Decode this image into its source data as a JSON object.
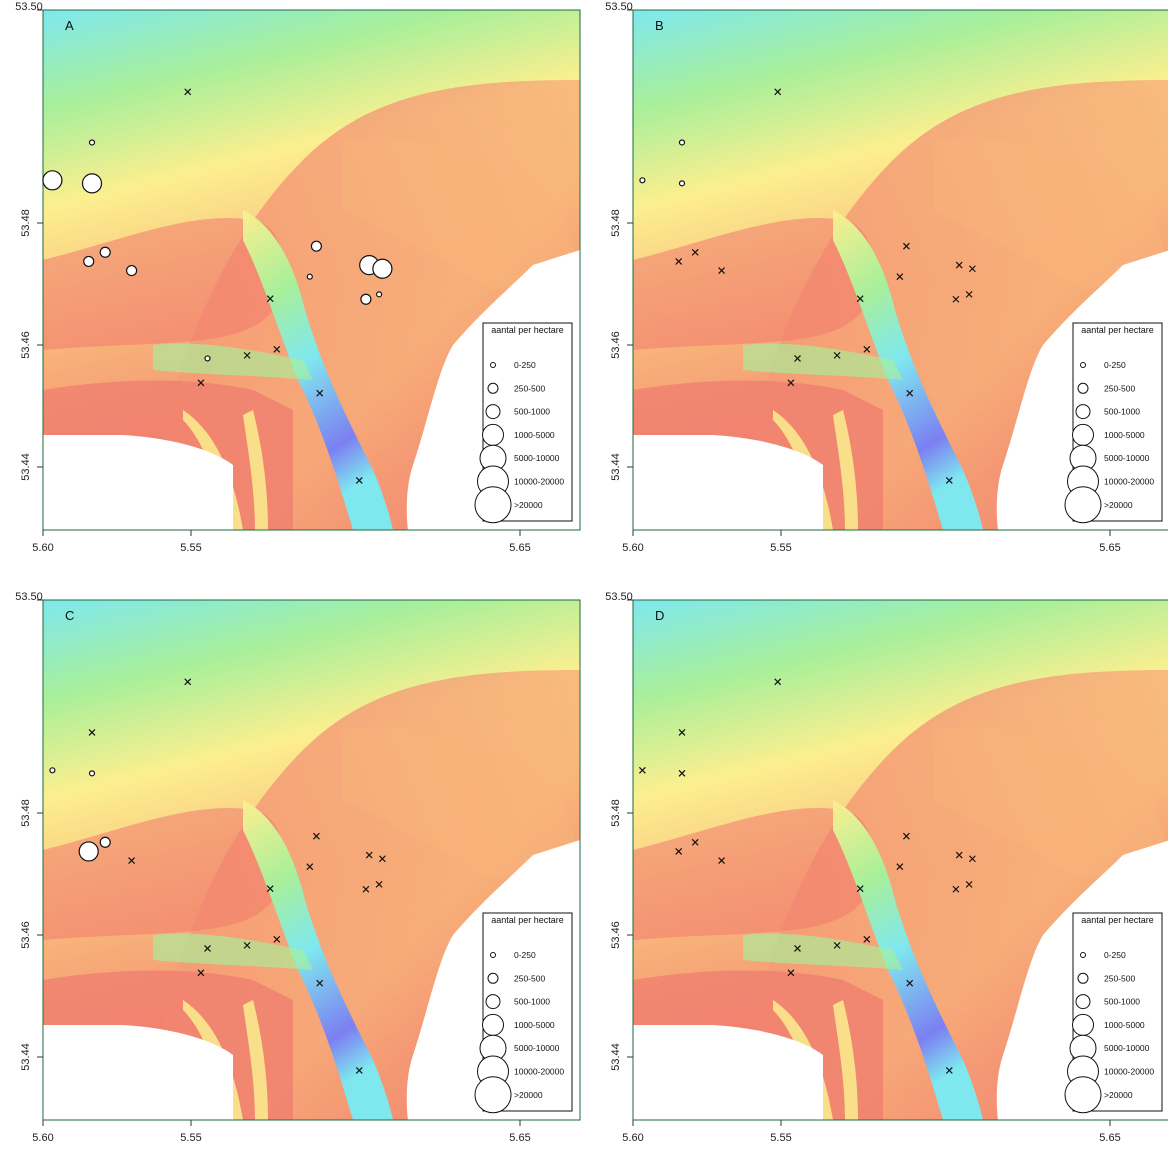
{
  "colors": {
    "deep_blue": "#7c7ff2",
    "cyan": "#7fe8ef",
    "green": "#a8ef9a",
    "yellow": "#fcef8f",
    "orange": "#f8b37a",
    "red": "#f07a6e",
    "land": "#ffffff",
    "frame": "#1e6b3a"
  },
  "x_tick_labels": [
    "5.55",
    "5.60",
    "5.65"
  ],
  "y_tick_labels": [
    "53.44",
    "53.46",
    "53.48",
    "53.50"
  ],
  "legend": {
    "title": "aantal per hectare",
    "classes": [
      "0-250",
      "250-500",
      "500-1000",
      "1000-5000",
      "5000-10000",
      "10000-20000",
      ">20000"
    ]
  },
  "chart_data": [
    {
      "type": "scatter",
      "panel": "A",
      "xlim": [
        5.505,
        5.67
      ],
      "ylim": [
        53.43,
        53.512
      ],
      "grid": false,
      "legend_position": "bottom-right",
      "symbols": "circle radius = density class; x = zero",
      "stations": [
        {
          "lon": 5.508,
          "lat": 53.487,
          "class": 2
        },
        {
          "lon": 5.52,
          "lat": 53.4865,
          "class": 2
        },
        {
          "lon": 5.52,
          "lat": 53.4932,
          "class": 0
        },
        {
          "lon": 5.519,
          "lat": 53.4737,
          "class": 1
        },
        {
          "lon": 5.524,
          "lat": 53.4752,
          "class": 1
        },
        {
          "lon": 5.532,
          "lat": 53.4722,
          "class": 1
        },
        {
          "lon": 5.549,
          "lat": 53.5015,
          "class": -1
        },
        {
          "lon": 5.588,
          "lat": 53.4762,
          "class": 1
        },
        {
          "lon": 5.586,
          "lat": 53.4712,
          "class": 0
        },
        {
          "lon": 5.574,
          "lat": 53.4676,
          "class": -1
        },
        {
          "lon": 5.555,
          "lat": 53.4578,
          "class": 0
        },
        {
          "lon": 5.553,
          "lat": 53.4538,
          "class": -1
        },
        {
          "lon": 5.567,
          "lat": 53.4583,
          "class": -1
        },
        {
          "lon": 5.576,
          "lat": 53.4593,
          "class": -1
        },
        {
          "lon": 5.589,
          "lat": 53.4521,
          "class": -1
        },
        {
          "lon": 5.604,
          "lat": 53.4731,
          "class": 2
        },
        {
          "lon": 5.608,
          "lat": 53.4725,
          "class": 2
        },
        {
          "lon": 5.603,
          "lat": 53.4675,
          "class": 1
        },
        {
          "lon": 5.607,
          "lat": 53.4683,
          "class": 0
        },
        {
          "lon": 5.601,
          "lat": 53.4378,
          "class": -1
        }
      ]
    },
    {
      "type": "scatter",
      "panel": "B",
      "xlim": [
        5.505,
        5.67
      ],
      "ylim": [
        53.43,
        53.512
      ],
      "grid": false,
      "legend_position": "bottom-right",
      "stations": [
        {
          "lon": 5.508,
          "lat": 53.487,
          "class": 0
        },
        {
          "lon": 5.52,
          "lat": 53.4865,
          "class": 0
        },
        {
          "lon": 5.52,
          "lat": 53.4932,
          "class": 0
        },
        {
          "lon": 5.519,
          "lat": 53.4737,
          "class": -1
        },
        {
          "lon": 5.524,
          "lat": 53.4752,
          "class": -1
        },
        {
          "lon": 5.532,
          "lat": 53.4722,
          "class": -1
        },
        {
          "lon": 5.549,
          "lat": 53.5015,
          "class": -1
        },
        {
          "lon": 5.588,
          "lat": 53.4762,
          "class": -1
        },
        {
          "lon": 5.586,
          "lat": 53.4712,
          "class": -1
        },
        {
          "lon": 5.574,
          "lat": 53.4676,
          "class": -1
        },
        {
          "lon": 5.555,
          "lat": 53.4578,
          "class": -1
        },
        {
          "lon": 5.553,
          "lat": 53.4538,
          "class": -1
        },
        {
          "lon": 5.567,
          "lat": 53.4583,
          "class": -1
        },
        {
          "lon": 5.576,
          "lat": 53.4593,
          "class": -1
        },
        {
          "lon": 5.589,
          "lat": 53.4521,
          "class": -1
        },
        {
          "lon": 5.604,
          "lat": 53.4731,
          "class": -1
        },
        {
          "lon": 5.608,
          "lat": 53.4725,
          "class": -1
        },
        {
          "lon": 5.603,
          "lat": 53.4675,
          "class": -1
        },
        {
          "lon": 5.607,
          "lat": 53.4683,
          "class": -1
        },
        {
          "lon": 5.601,
          "lat": 53.4378,
          "class": -1
        }
      ]
    },
    {
      "type": "scatter",
      "panel": "C",
      "xlim": [
        5.505,
        5.67
      ],
      "ylim": [
        53.43,
        53.512
      ],
      "grid": false,
      "legend_position": "bottom-right",
      "stations": [
        {
          "lon": 5.508,
          "lat": 53.487,
          "class": 0
        },
        {
          "lon": 5.52,
          "lat": 53.4865,
          "class": 0
        },
        {
          "lon": 5.52,
          "lat": 53.4932,
          "class": -1
        },
        {
          "lon": 5.519,
          "lat": 53.4737,
          "class": 2
        },
        {
          "lon": 5.524,
          "lat": 53.4752,
          "class": 1
        },
        {
          "lon": 5.532,
          "lat": 53.4722,
          "class": -1
        },
        {
          "lon": 5.549,
          "lat": 53.5015,
          "class": -1
        },
        {
          "lon": 5.588,
          "lat": 53.4762,
          "class": -1
        },
        {
          "lon": 5.586,
          "lat": 53.4712,
          "class": -1
        },
        {
          "lon": 5.574,
          "lat": 53.4676,
          "class": -1
        },
        {
          "lon": 5.555,
          "lat": 53.4578,
          "class": -1
        },
        {
          "lon": 5.553,
          "lat": 53.4538,
          "class": -1
        },
        {
          "lon": 5.567,
          "lat": 53.4583,
          "class": -1
        },
        {
          "lon": 5.576,
          "lat": 53.4593,
          "class": -1
        },
        {
          "lon": 5.589,
          "lat": 53.4521,
          "class": -1
        },
        {
          "lon": 5.604,
          "lat": 53.4731,
          "class": -1
        },
        {
          "lon": 5.608,
          "lat": 53.4725,
          "class": -1
        },
        {
          "lon": 5.603,
          "lat": 53.4675,
          "class": -1
        },
        {
          "lon": 5.607,
          "lat": 53.4683,
          "class": -1
        },
        {
          "lon": 5.601,
          "lat": 53.4378,
          "class": -1
        }
      ]
    },
    {
      "type": "scatter",
      "panel": "D",
      "xlim": [
        5.505,
        5.67
      ],
      "ylim": [
        53.43,
        53.512
      ],
      "grid": false,
      "legend_position": "bottom-right",
      "stations": [
        {
          "lon": 5.508,
          "lat": 53.487,
          "class": -1
        },
        {
          "lon": 5.52,
          "lat": 53.4865,
          "class": -1
        },
        {
          "lon": 5.52,
          "lat": 53.4932,
          "class": -1
        },
        {
          "lon": 5.519,
          "lat": 53.4737,
          "class": -1
        },
        {
          "lon": 5.524,
          "lat": 53.4752,
          "class": -1
        },
        {
          "lon": 5.532,
          "lat": 53.4722,
          "class": -1
        },
        {
          "lon": 5.549,
          "lat": 53.5015,
          "class": -1
        },
        {
          "lon": 5.588,
          "lat": 53.4762,
          "class": -1
        },
        {
          "lon": 5.586,
          "lat": 53.4712,
          "class": -1
        },
        {
          "lon": 5.574,
          "lat": 53.4676,
          "class": -1
        },
        {
          "lon": 5.555,
          "lat": 53.4578,
          "class": -1
        },
        {
          "lon": 5.553,
          "lat": 53.4538,
          "class": -1
        },
        {
          "lon": 5.567,
          "lat": 53.4583,
          "class": -1
        },
        {
          "lon": 5.576,
          "lat": 53.4593,
          "class": -1
        },
        {
          "lon": 5.589,
          "lat": 53.4521,
          "class": -1
        },
        {
          "lon": 5.604,
          "lat": 53.4731,
          "class": -1
        },
        {
          "lon": 5.608,
          "lat": 53.4725,
          "class": -1
        },
        {
          "lon": 5.603,
          "lat": 53.4675,
          "class": -1
        },
        {
          "lon": 5.607,
          "lat": 53.4683,
          "class": -1
        },
        {
          "lon": 5.601,
          "lat": 53.4378,
          "class": -1
        }
      ]
    }
  ]
}
